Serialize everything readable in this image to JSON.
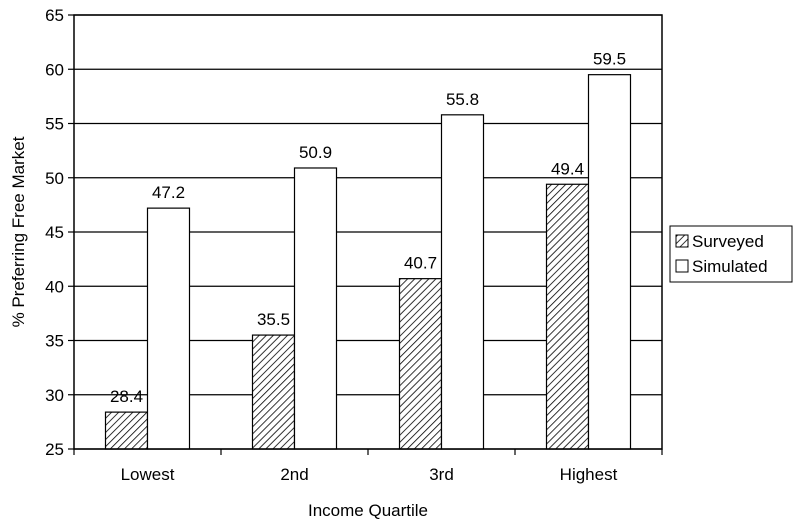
{
  "chart_data": {
    "type": "bar",
    "categories": [
      "Lowest",
      "2nd",
      "3rd",
      "Highest"
    ],
    "series": [
      {
        "name": "Surveyed",
        "values": [
          28.4,
          35.5,
          40.7,
          49.4
        ],
        "fill": "hatched"
      },
      {
        "name": "Simulated",
        "values": [
          47.2,
          50.9,
          55.8,
          59.5
        ],
        "fill": "#ffffff"
      }
    ],
    "xlabel": "Income Quartile",
    "ylabel": "% Preferring Free Market",
    "ylim": [
      25,
      65
    ],
    "yticks": [
      "25",
      "30",
      "35",
      "40",
      "45",
      "50",
      "55",
      "60",
      "65"
    ],
    "data_labels": {
      "Surveyed": [
        "28.4",
        "35.5",
        "40.7",
        "49.4"
      ],
      "Simulated": [
        "47.2",
        "50.9",
        "55.8",
        "59.5"
      ]
    },
    "grid": true,
    "legend_position": "right",
    "colors": {
      "stroke": "#000000",
      "background": "#ffffff"
    }
  }
}
